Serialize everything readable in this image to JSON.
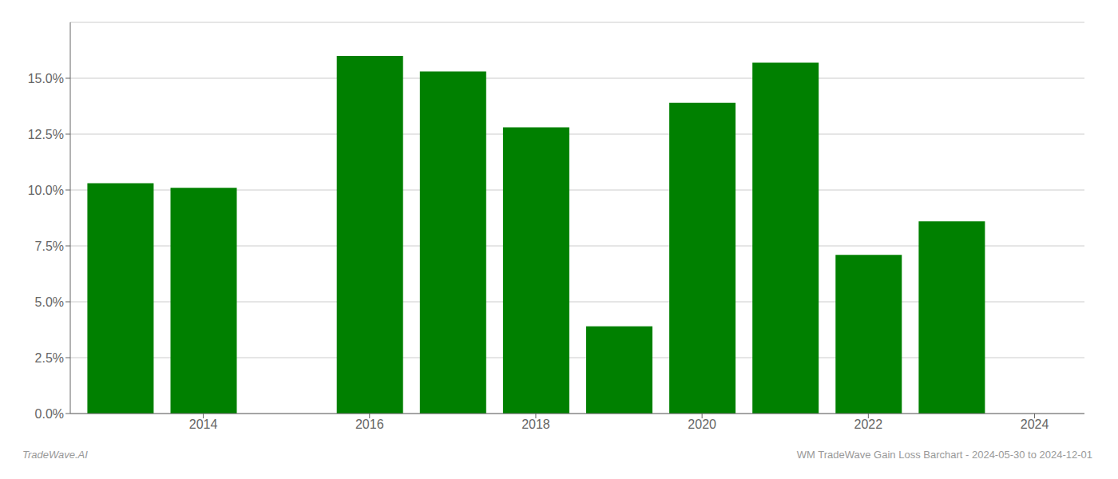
{
  "chart_data": {
    "type": "bar",
    "x": [
      2013,
      2014,
      2015,
      2016,
      2017,
      2018,
      2019,
      2020,
      2021,
      2022,
      2023
    ],
    "values": [
      0.103,
      0.101,
      null,
      0.16,
      0.153,
      0.128,
      0.039,
      0.139,
      0.157,
      0.071,
      0.086
    ],
    "color": "#008000",
    "xlim": [
      2012.4,
      2024.6
    ],
    "xticks": [
      2014,
      2016,
      2018,
      2020,
      2022,
      2024
    ],
    "ylim": [
      0,
      0.175
    ],
    "yticks": [
      {
        "value": 0.0,
        "label": "0.0%"
      },
      {
        "value": 0.025,
        "label": "2.5%"
      },
      {
        "value": 0.05,
        "label": "5.0%"
      },
      {
        "value": 0.075,
        "label": "7.5%"
      },
      {
        "value": 0.1,
        "label": "10.0%"
      },
      {
        "value": 0.125,
        "label": "12.5%"
      },
      {
        "value": 0.15,
        "label": "15.0%"
      }
    ],
    "grid": true,
    "annotations": [
      "TradeWave.AI",
      "WM TradeWave Gain Loss Barchart - 2024-05-30 to 2024-12-01"
    ]
  }
}
